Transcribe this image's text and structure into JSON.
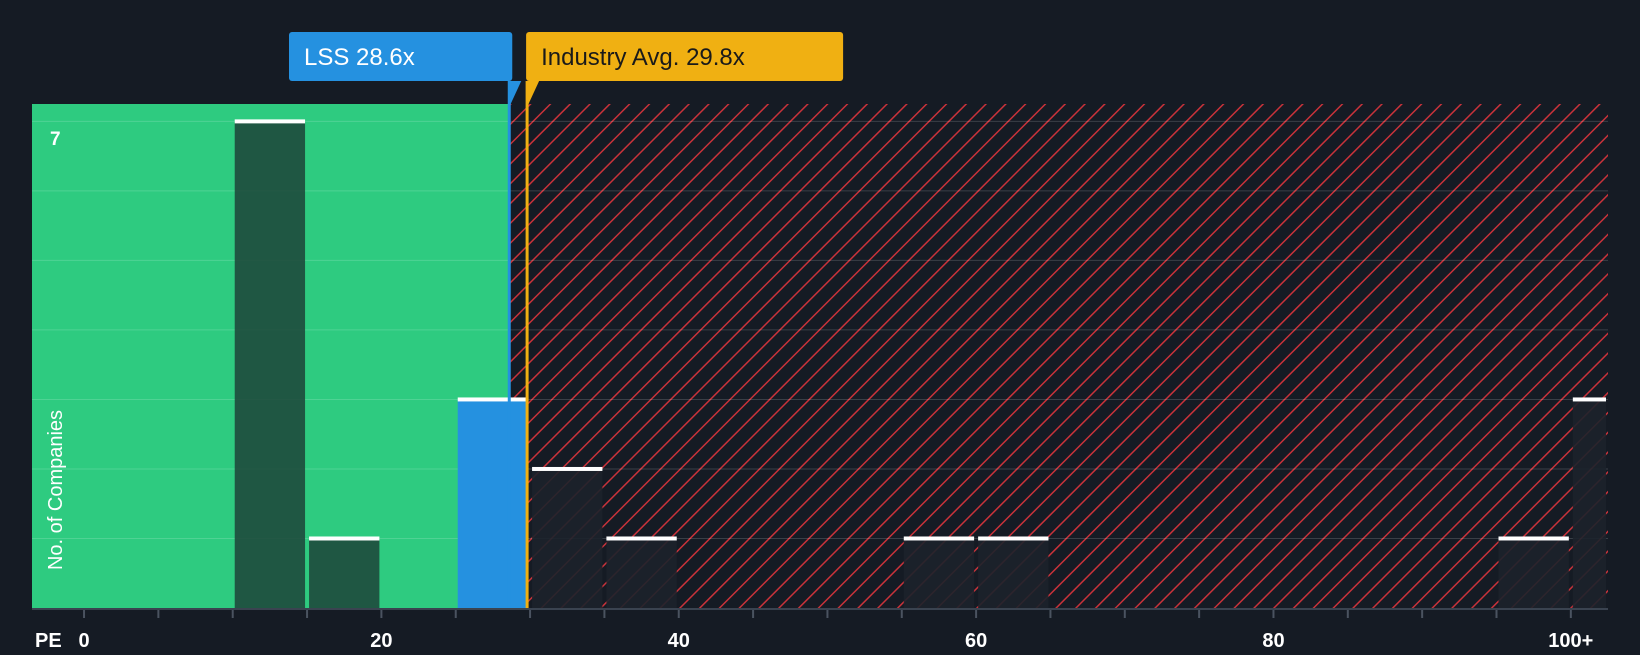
{
  "chart_data": {
    "type": "bar",
    "title": "",
    "xlabel": "PE",
    "ylabel": "No. of Companies",
    "xlim": [
      -3.5,
      102.5
    ],
    "ylim": [
      0,
      7.25
    ],
    "x_ticks": [
      0,
      20,
      40,
      60,
      80,
      100
    ],
    "x_tick_labels": [
      "0",
      "20",
      "40",
      "60",
      "80",
      "100+"
    ],
    "y_tick_labels": [
      {
        "value": 7,
        "label": "7"
      }
    ],
    "y_gridlines": [
      1,
      2,
      3,
      4,
      5,
      6,
      7
    ],
    "bin_width": 5,
    "bars": [
      {
        "x0": 10,
        "x1": 15,
        "value": 7
      },
      {
        "x0": 15,
        "x1": 20,
        "value": 1
      },
      {
        "x0": 25,
        "x1": 30,
        "value": 3,
        "highlight": true
      },
      {
        "x0": 30,
        "x1": 35,
        "value": 2
      },
      {
        "x0": 35,
        "x1": 40,
        "value": 1
      },
      {
        "x0": 55,
        "x1": 60,
        "value": 1
      },
      {
        "x0": 60,
        "x1": 65,
        "value": 1
      },
      {
        "x0": 95,
        "x1": 100,
        "value": 1
      },
      {
        "x0": 100,
        "x1": 102.5,
        "value": 3
      }
    ],
    "markers": {
      "company": {
        "label": "LSS 28.6x",
        "value": 28.6,
        "color": "#2591e0"
      },
      "industry": {
        "label": "Industry Avg. 29.8x",
        "value": 29.8,
        "color": "#f0b012"
      }
    },
    "colors": {
      "background": "#151b24",
      "good_zone": "#2ecb80",
      "bad_zone_hatch": "#c8323a",
      "bar_in_good_zone": "#1e4a3c",
      "bar_in_bad_zone": "#1c222b",
      "highlight_bar": "#2591e0",
      "bar_cap": "#ffffff",
      "axis_text": "#ffffff"
    }
  }
}
